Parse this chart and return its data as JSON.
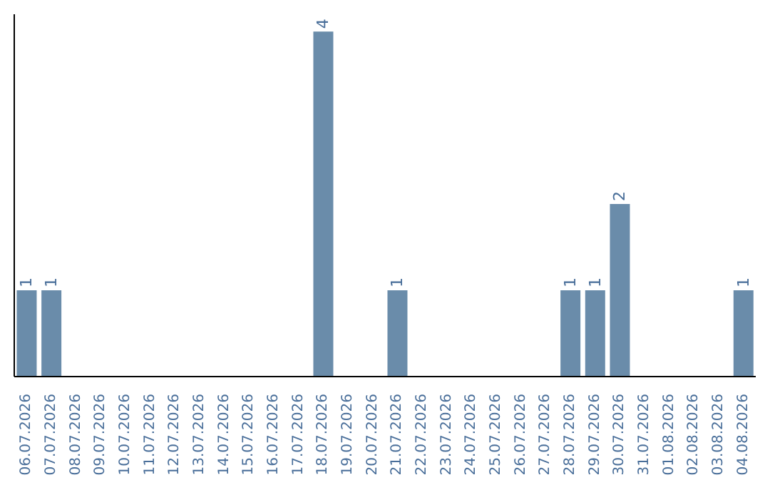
{
  "chart_data": {
    "type": "bar",
    "categories": [
      "06.07.2026",
      "07.07.2026",
      "08.07.2026",
      "09.07.2026",
      "10.07.2026",
      "11.07.2026",
      "12.07.2026",
      "13.07.2026",
      "14.07.2026",
      "15.07.2026",
      "16.07.2026",
      "17.07.2026",
      "18.07.2026",
      "19.07.2026",
      "20.07.2026",
      "21.07.2026",
      "22.07.2026",
      "23.07.2026",
      "24.07.2026",
      "25.07.2026",
      "26.07.2026",
      "27.07.2026",
      "28.07.2026",
      "29.07.2026",
      "30.07.2026",
      "31.07.2026",
      "01.08.2026",
      "02.08.2026",
      "03.08.2026",
      "04.08.2026"
    ],
    "values": [
      1,
      1,
      0,
      0,
      0,
      0,
      0,
      0,
      0,
      0,
      0,
      0,
      4,
      0,
      0,
      1,
      0,
      0,
      0,
      0,
      0,
      0,
      1,
      1,
      2,
      0,
      0,
      0,
      0,
      1
    ],
    "value_labels": [
      "1",
      "1",
      null,
      null,
      null,
      null,
      null,
      null,
      null,
      null,
      null,
      null,
      "4",
      null,
      null,
      "1",
      null,
      null,
      null,
      null,
      null,
      null,
      "1",
      "1",
      "2",
      null,
      null,
      null,
      null,
      "1"
    ],
    "color": "#6a8caa",
    "ylim": [
      0,
      4.2
    ],
    "tick_labels": "x"
  }
}
